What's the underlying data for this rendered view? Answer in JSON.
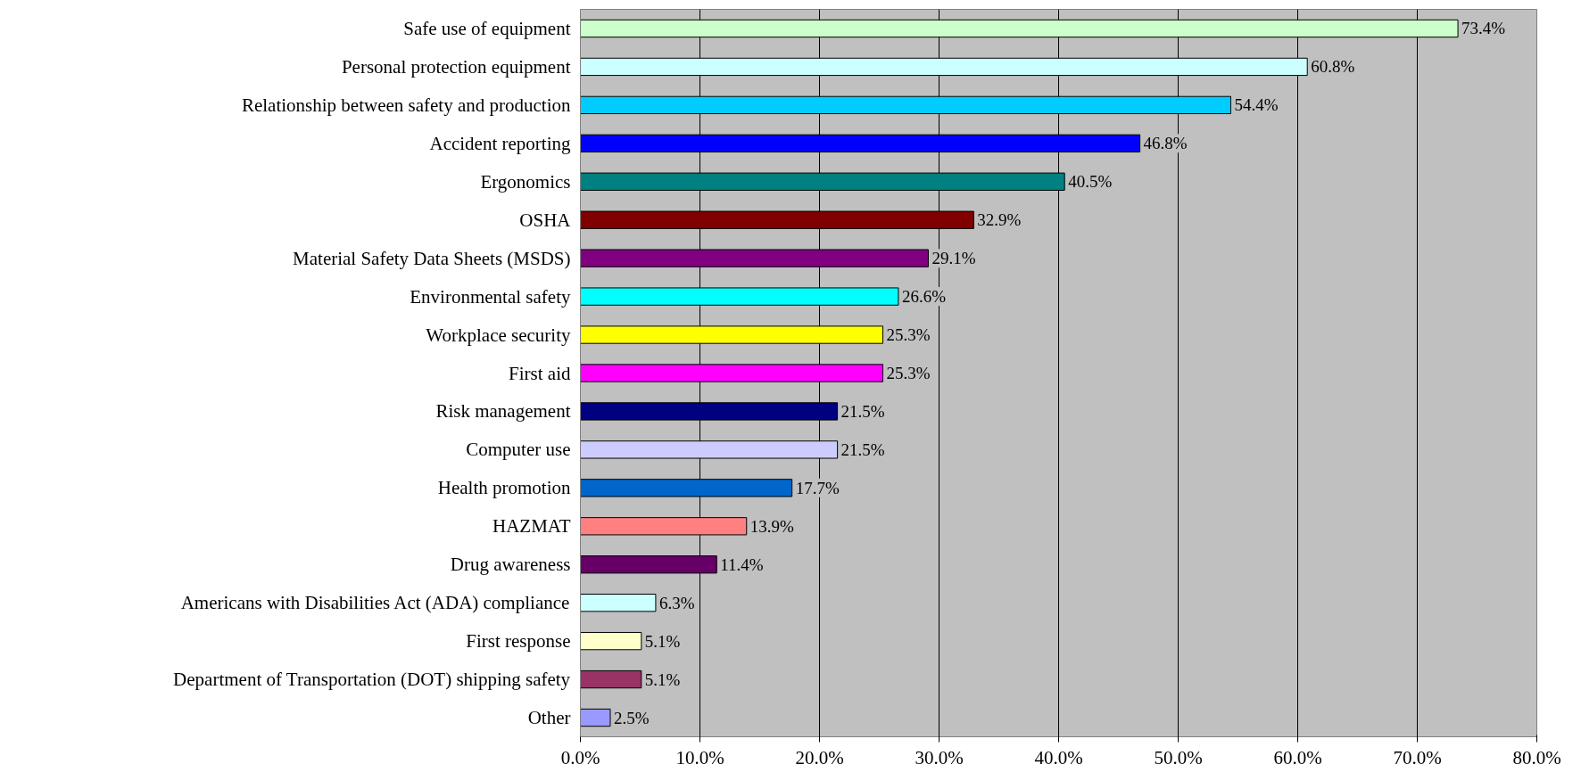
{
  "chart_data": {
    "type": "bar",
    "orientation": "horizontal",
    "categories": [
      "Safe use of equipment",
      "Personal protection equipment",
      "Relationship between safety and production",
      "Accident reporting",
      "Ergonomics",
      "OSHA",
      "Material Safety Data Sheets (MSDS)",
      "Environmental safety",
      "Workplace security",
      "First aid",
      "Risk management",
      "Computer use",
      "Health promotion",
      "HAZMAT",
      "Drug awareness",
      "Americans with Disabilities Act (ADA) compliance",
      "First response",
      "Department of Transportation (DOT) shipping safety",
      "Other"
    ],
    "values": [
      73.4,
      60.8,
      54.4,
      46.8,
      40.5,
      32.9,
      29.1,
      26.6,
      25.3,
      25.3,
      21.5,
      21.5,
      17.7,
      13.9,
      11.4,
      6.3,
      5.1,
      5.1,
      2.5
    ],
    "value_labels": [
      "73.4%",
      "60.8%",
      "54.4%",
      "46.8%",
      "40.5%",
      "32.9%",
      "29.1%",
      "26.6%",
      "25.3%",
      "25.3%",
      "21.5%",
      "21.5%",
      "17.7%",
      "13.9%",
      "11.4%",
      "6.3%",
      "5.1%",
      "5.1%",
      "2.5%"
    ],
    "colors": [
      "#ccffcc",
      "#ccffff",
      "#00ccff",
      "#0000ff",
      "#008080",
      "#800000",
      "#800080",
      "#00ffff",
      "#ffff00",
      "#ff00ff",
      "#000080",
      "#ccccff",
      "#0066cc",
      "#ff8080",
      "#660066",
      "#ccffff",
      "#ffffcc",
      "#993366",
      "#9999ff"
    ],
    "xlim": [
      0,
      80
    ],
    "xticks": [
      {
        "value": 0,
        "label": "0.0%"
      },
      {
        "value": 10,
        "label": "10.0%"
      },
      {
        "value": 20,
        "label": "20.0%"
      },
      {
        "value": 30,
        "label": "30.0%"
      },
      {
        "value": 40,
        "label": "40.0%"
      },
      {
        "value": 50,
        "label": "50.0%"
      },
      {
        "value": 60,
        "label": "60.0%"
      },
      {
        "value": 70,
        "label": "70.0%"
      },
      {
        "value": 80,
        "label": "80.0%"
      }
    ],
    "grid": "x"
  }
}
